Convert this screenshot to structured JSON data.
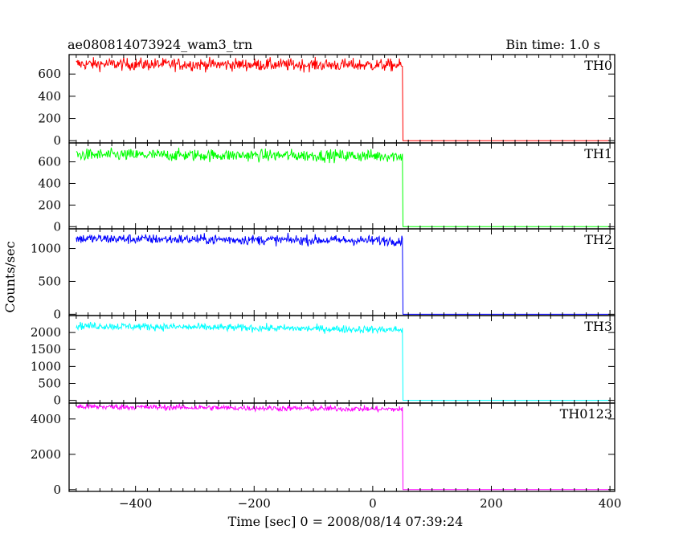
{
  "chart_data": {
    "type": "line",
    "title": "ae080814073924_wam3_trn",
    "bin_time_label": "Bin time: 1.0 s",
    "xlabel": "Time [sec] 0 = 2008/08/14 07:39:24",
    "ylabel": "Counts/sec",
    "xlim": [
      -512,
      408
    ],
    "x_ticks": [
      -400,
      -200,
      0,
      200,
      400
    ],
    "x_tick_labels": [
      "−400",
      "−200",
      "0",
      "200",
      "400"
    ],
    "panels": [
      {
        "name": "TH0",
        "color": "#ff0000",
        "ylim": [
          -20,
          775
        ],
        "y_ticks": [
          0,
          200,
          400,
          600
        ],
        "y_tick_labels": [
          "0",
          "200",
          "400",
          "600"
        ],
        "x_start": -500,
        "x_drop": 50,
        "x_end": 400,
        "level_start": 690,
        "level_end": 680,
        "noise": 28,
        "level_after": 0
      },
      {
        "name": "TH1",
        "color": "#00ff00",
        "ylim": [
          -20,
          775
        ],
        "y_ticks": [
          0,
          200,
          400,
          600
        ],
        "y_tick_labels": [
          "0",
          "200",
          "400",
          "600"
        ],
        "x_start": -500,
        "x_drop": 50,
        "x_end": 400,
        "level_start": 665,
        "level_end": 655,
        "noise": 28,
        "level_after": 0
      },
      {
        "name": "TH2",
        "color": "#0000ff",
        "ylim": [
          -20,
          1300
        ],
        "y_ticks": [
          0,
          500,
          1000
        ],
        "y_tick_labels": [
          "0",
          "500",
          "1000"
        ],
        "x_start": -500,
        "x_drop": 50,
        "x_end": 400,
        "level_start": 1150,
        "level_end": 1120,
        "noise": 38,
        "level_after": 0
      },
      {
        "name": "TH3",
        "color": "#00ffff",
        "ylim": [
          -80,
          2500
        ],
        "y_ticks": [
          0,
          500,
          1000,
          1500,
          2000
        ],
        "y_tick_labels": [
          "0",
          "500",
          "1000",
          "1500",
          "2000"
        ],
        "x_start": -500,
        "x_drop": 50,
        "x_end": 400,
        "level_start": 2200,
        "level_end": 2080,
        "noise": 55,
        "level_after": 0
      },
      {
        "name": "TH0123",
        "color": "#ff00ff",
        "ylim": [
          -100,
          4900
        ],
        "y_ticks": [
          0,
          2000,
          4000
        ],
        "y_tick_labels": [
          "0",
          "2000",
          "4000"
        ],
        "x_start": -500,
        "x_drop": 50,
        "x_end": 400,
        "level_start": 4700,
        "level_end": 4550,
        "noise": 80,
        "level_after": 0
      }
    ],
    "grid": false,
    "legend": "none"
  }
}
